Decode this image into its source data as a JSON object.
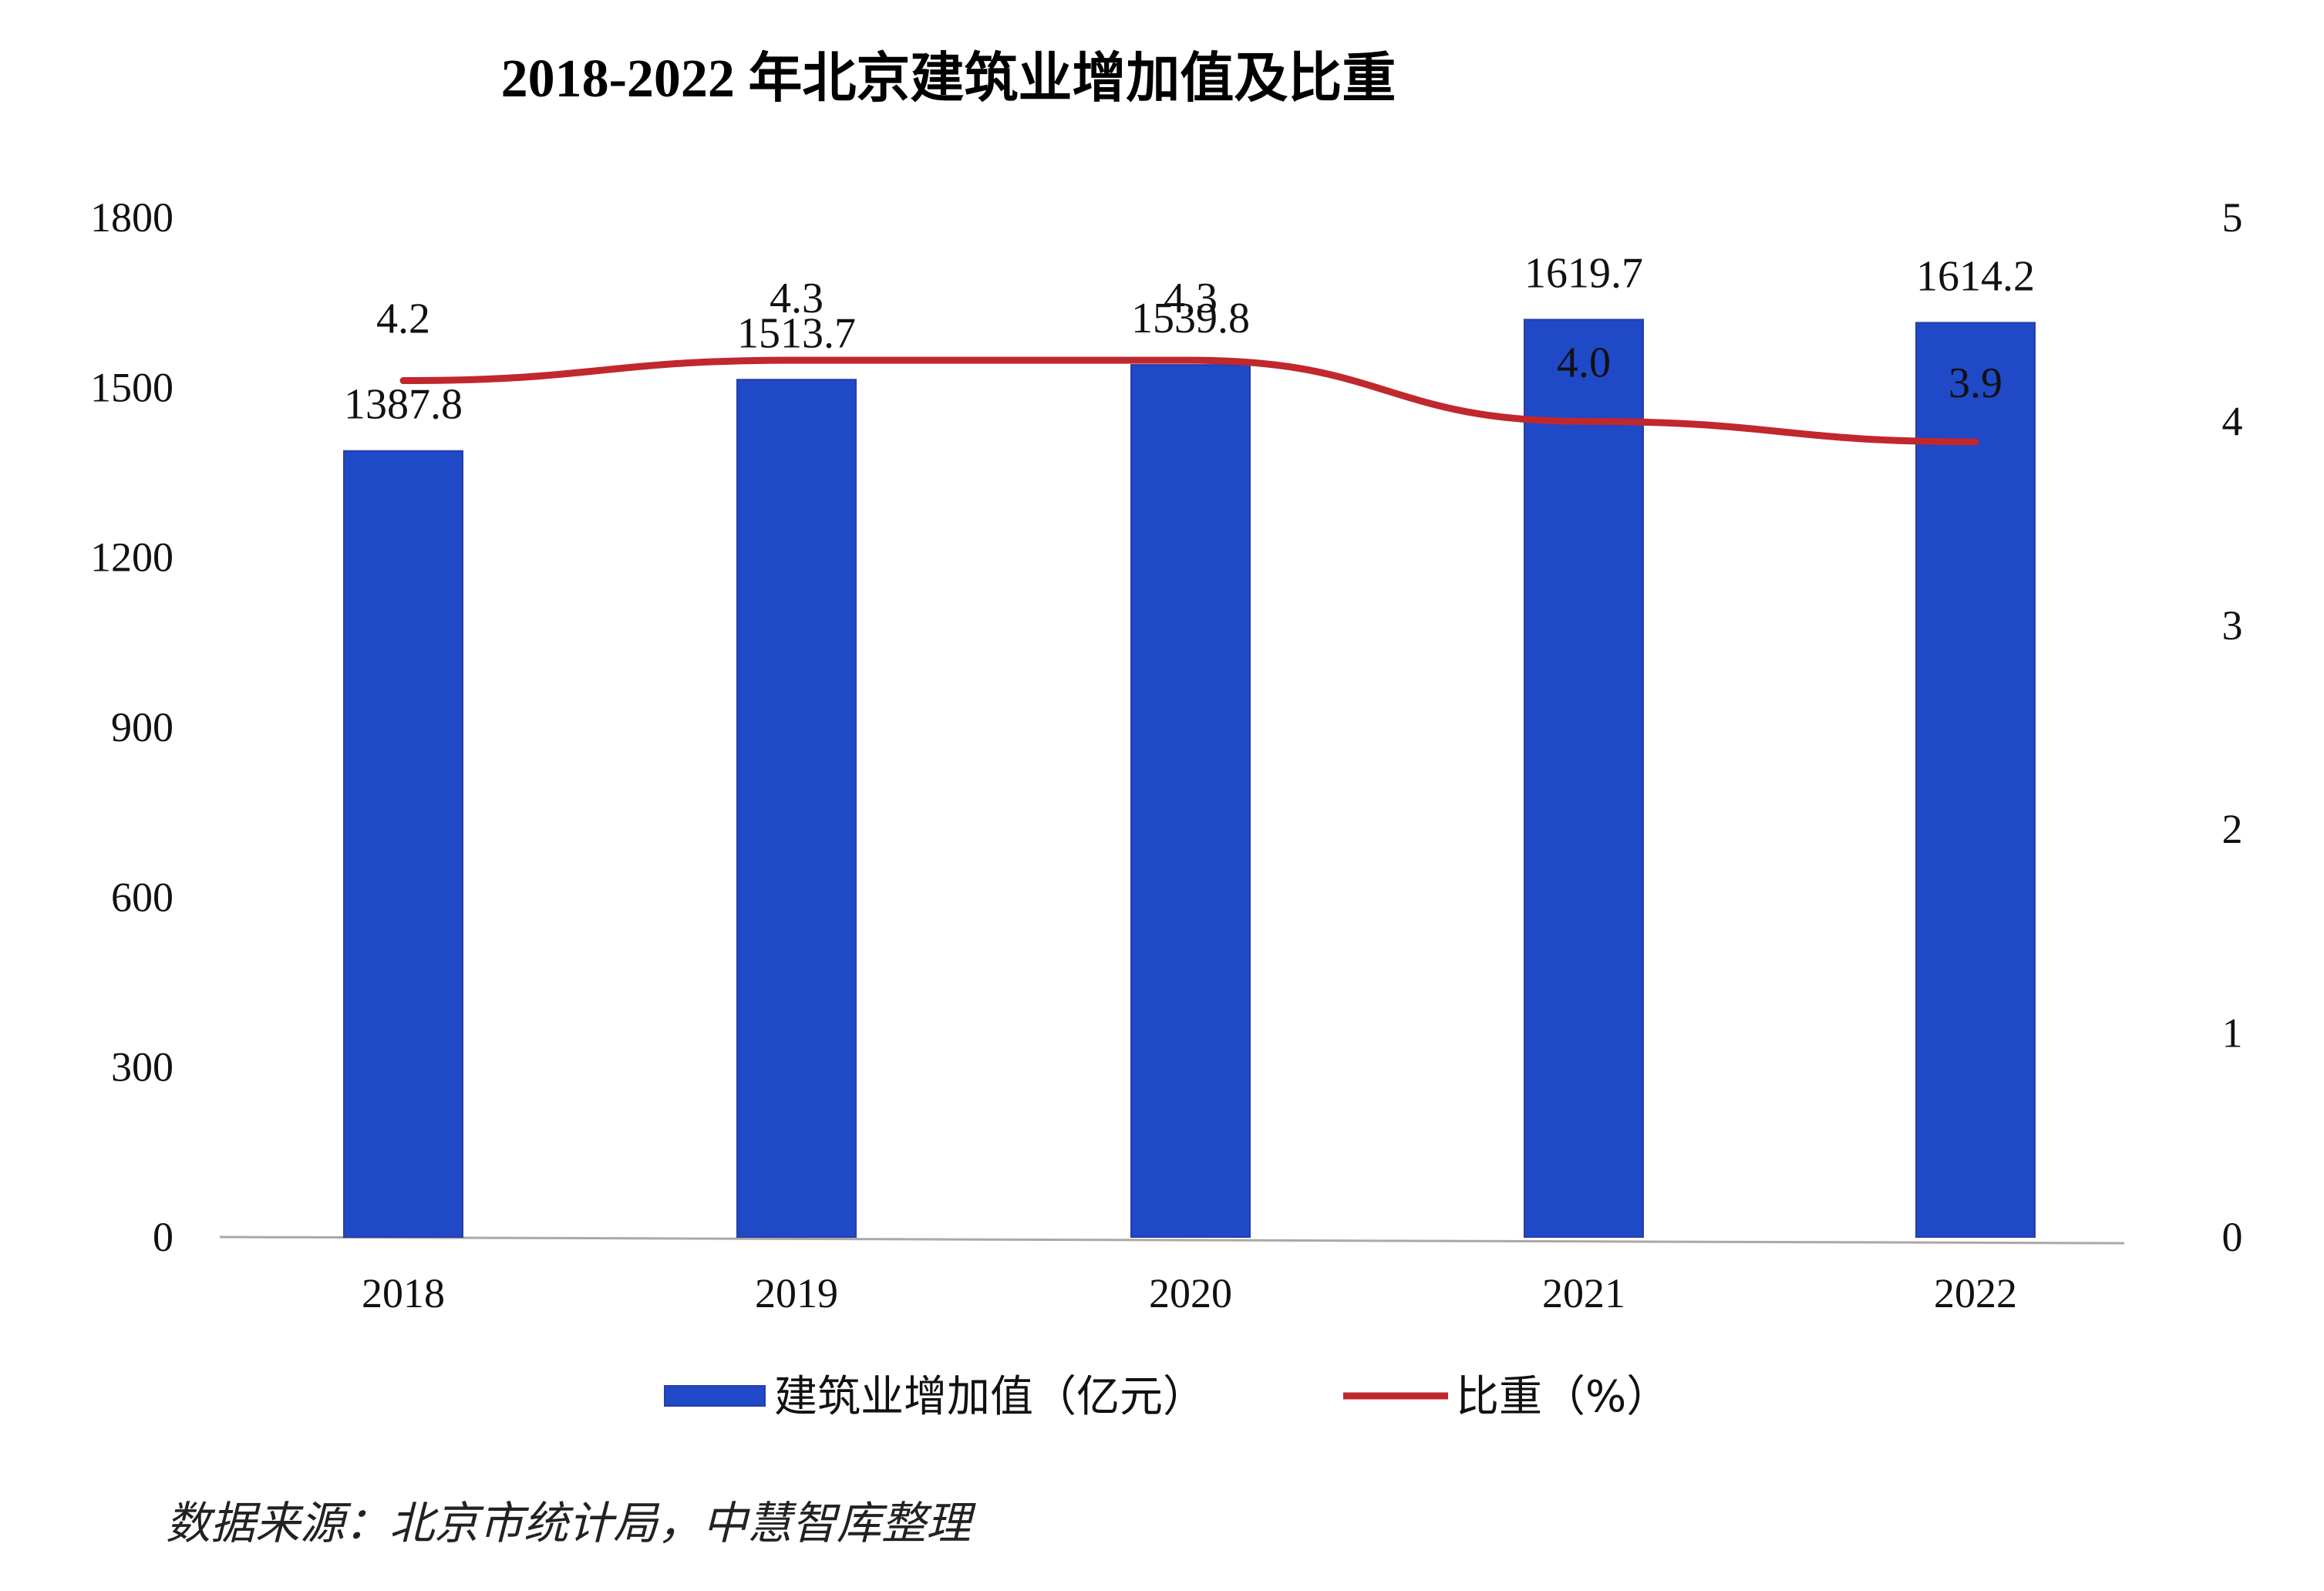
{
  "chart_data": {
    "type": "bar",
    "title": "2018-2022 年北京建筑业增加值及比重",
    "categories": [
      "2018",
      "2019",
      "2020",
      "2021",
      "2022"
    ],
    "series": [
      {
        "name": "建筑业增加值（亿元）",
        "type": "bar",
        "axis": "left",
        "color": "#1f49c6",
        "values": [
          1387.8,
          1513.7,
          1539.8,
          1619.7,
          1614.2
        ],
        "labels": [
          "1387.8",
          "1513.7",
          "1539.8",
          "1619.7",
          "1614.2"
        ]
      },
      {
        "name": "比重（%）",
        "type": "line",
        "axis": "right",
        "color": "#c0282d",
        "values": [
          4.2,
          4.3,
          4.3,
          4.0,
          3.9
        ],
        "labels": [
          "4.2",
          "4.3",
          "4.3",
          "4.0",
          "3.9"
        ]
      }
    ],
    "y_left": {
      "range": [
        0,
        1800
      ],
      "ticks": [
        "0",
        "300",
        "600",
        "900",
        "1200",
        "1500",
        "1800"
      ]
    },
    "y_right": {
      "range": [
        0,
        5
      ],
      "ticks": [
        "0",
        "1",
        "2",
        "3",
        "4",
        "5"
      ]
    },
    "grid": false,
    "legend": "bottom",
    "source": "数据来源：北京市统计局，中慧智库整理"
  }
}
